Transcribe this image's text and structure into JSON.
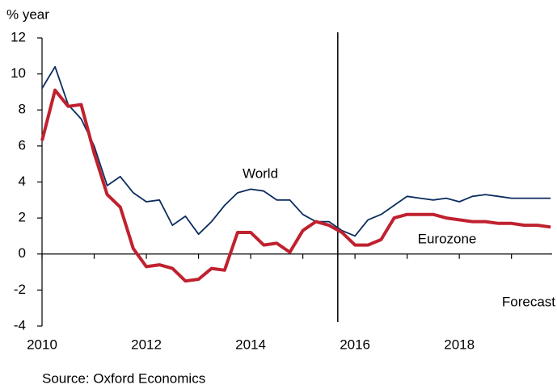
{
  "chart_data": {
    "type": "line",
    "ylabel": "% year",
    "source": "Source: Oxford Economics",
    "x": [
      2010,
      2010.25,
      2010.5,
      2010.75,
      2011,
      2011.25,
      2011.5,
      2011.75,
      2012,
      2012.25,
      2012.5,
      2012.75,
      2013,
      2013.25,
      2013.5,
      2013.75,
      2014,
      2014.25,
      2014.5,
      2014.75,
      2015,
      2015.25,
      2015.5,
      2015.75,
      2016,
      2016.25,
      2016.5,
      2016.75,
      2017,
      2017.25,
      2017.5,
      2017.75,
      2018,
      2018.25,
      2018.5,
      2018.75,
      2019,
      2019.25,
      2019.5,
      2019.75
    ],
    "series": [
      {
        "name": "World",
        "color": "#0b2d5e",
        "width": 1.8,
        "values": [
          9.2,
          10.4,
          8.3,
          7.5,
          6.0,
          3.8,
          4.3,
          3.4,
          2.9,
          3.0,
          1.6,
          2.1,
          1.1,
          1.8,
          2.7,
          3.4,
          3.6,
          3.5,
          3.0,
          3.0,
          2.2,
          1.8,
          1.8,
          1.3,
          1.0,
          1.9,
          2.2,
          2.7,
          3.2,
          3.1,
          3.0,
          3.1,
          2.9,
          3.2,
          3.3,
          3.2,
          3.1,
          3.1,
          3.1,
          3.1
        ]
      },
      {
        "name": "Eurozone",
        "color": "#c0212f",
        "width": 4,
        "values": [
          6.3,
          9.1,
          8.2,
          8.3,
          5.6,
          3.3,
          2.6,
          0.3,
          -0.7,
          -0.6,
          -0.8,
          -1.5,
          -1.4,
          -0.8,
          -0.9,
          1.2,
          1.2,
          0.5,
          0.6,
          0.1,
          1.3,
          1.8,
          1.6,
          1.2,
          0.5,
          0.5,
          0.8,
          2.0,
          2.2,
          2.2,
          2.2,
          2.0,
          1.9,
          1.8,
          1.8,
          1.7,
          1.7,
          1.6,
          1.6,
          1.5
        ]
      }
    ],
    "forecast": {
      "text": "Forecast",
      "x": 2015.67
    },
    "xlim": [
      2010,
      2019.78
    ],
    "xticks": [
      2010,
      2012,
      2014,
      2016,
      2018
    ],
    "xminorticks": [
      2011,
      2013,
      2015,
      2017,
      2019
    ],
    "ylim": [
      -4,
      12
    ],
    "yticks": [
      -4,
      -2,
      0,
      2,
      4,
      6,
      8,
      10,
      12
    ]
  }
}
